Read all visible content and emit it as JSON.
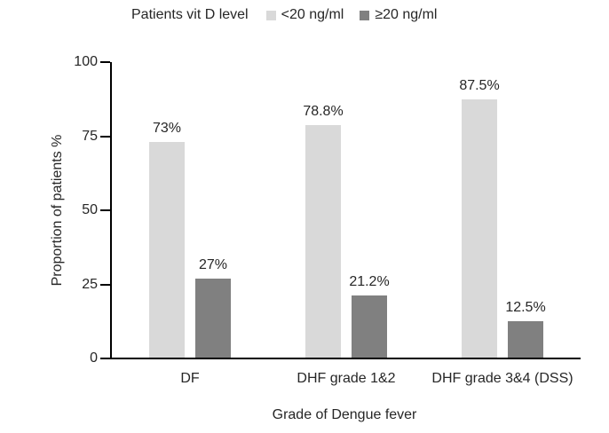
{
  "legend": {
    "title": "Patients vit D level",
    "items": [
      {
        "label": "<20 ng/ml",
        "color": "#d9d9d9"
      },
      {
        "label": "≥20 ng/ml",
        "color": "#808080"
      }
    ]
  },
  "chart_data": {
    "type": "bar",
    "title": "Patients vit D level",
    "categories": [
      "DF",
      "DHF grade 1&2",
      "DHF grade 3&4 (DSS)"
    ],
    "series": [
      {
        "name": "<20 ng/ml",
        "color": "#d9d9d9",
        "values": [
          73,
          78.8,
          87.5
        ],
        "labels": [
          "73%",
          "78.8%",
          "87.5%"
        ]
      },
      {
        "name": "≥20 ng/ml",
        "color": "#808080",
        "values": [
          27,
          21.2,
          12.5
        ],
        "labels": [
          "27%",
          "21.2%",
          "12.5%"
        ]
      }
    ],
    "xlabel": "Grade of Dengue fever",
    "ylabel": "Proportion of patients %",
    "ylim": [
      0,
      100
    ],
    "yticks": [
      0,
      25,
      50,
      75,
      100
    ],
    "grid": false,
    "legend_position": "top"
  },
  "colors": {
    "axis": "#000000",
    "text": "#262626",
    "background": "#ffffff"
  }
}
